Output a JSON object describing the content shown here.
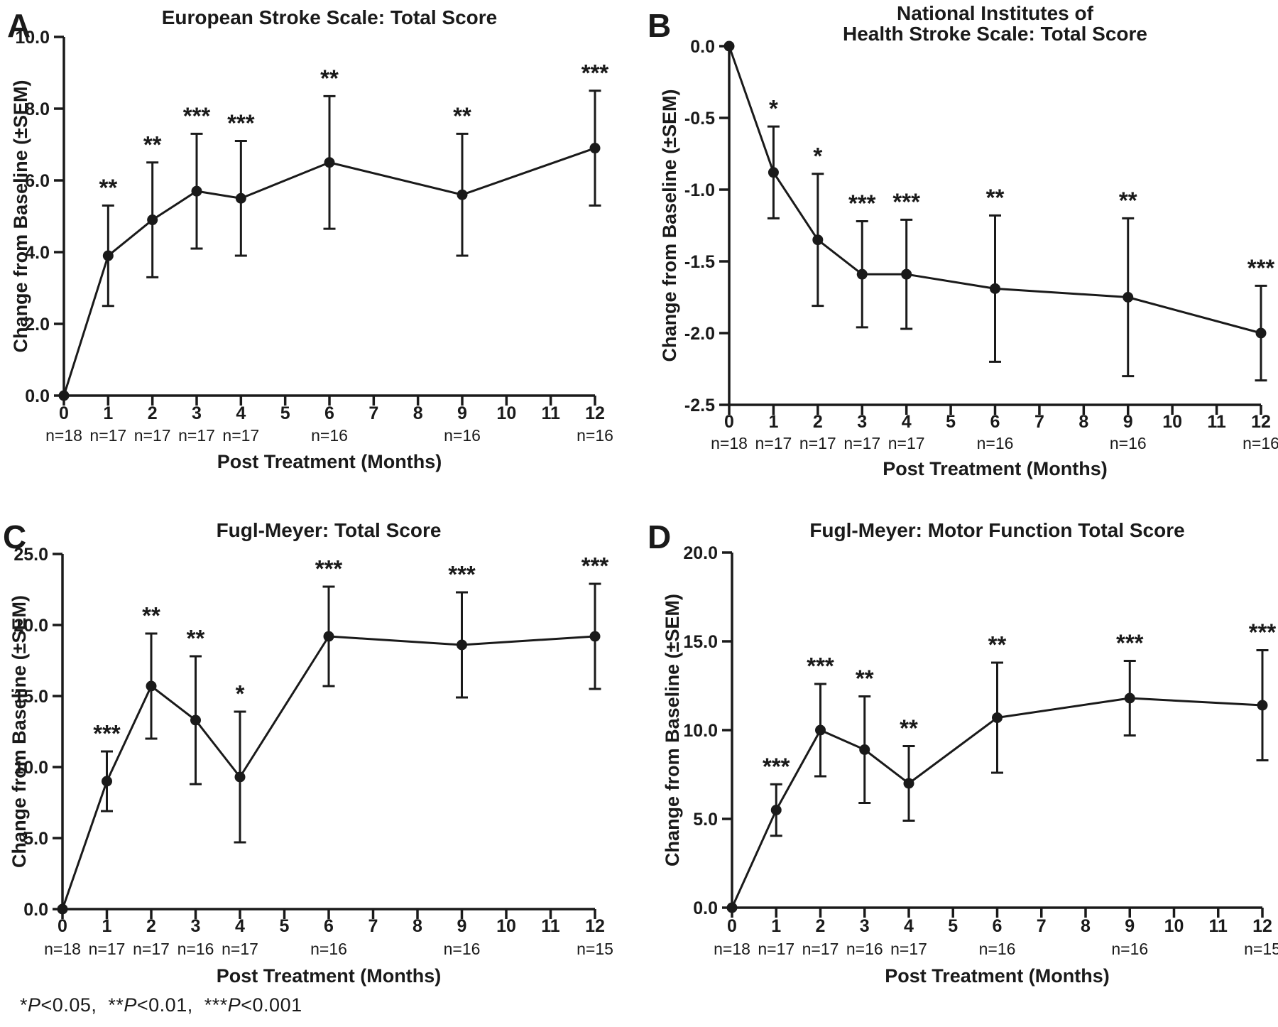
{
  "figure": {
    "background": "#ffffff",
    "ink_color": "#1a1a1a",
    "footnote": {
      "segments": [
        {
          "stars": "*",
          "p": "P",
          "rest": "<0.05,  "
        },
        {
          "stars": "**",
          "p": "P",
          "rest": "<0.01,  "
        },
        {
          "stars": "***",
          "p": "P",
          "rest": "<0.001"
        }
      ]
    }
  },
  "chart_data": [
    {
      "panel_label": "A",
      "type": "line",
      "title_lines": [
        "European Stroke Scale: Total Score"
      ],
      "xlabel": "Post Treatment (Months)",
      "ylabel": "Change from Baseline (±SEM)",
      "xlim": [
        0,
        12
      ],
      "ylim": [
        0,
        10
      ],
      "xticks": [
        0,
        1,
        2,
        3,
        4,
        5,
        6,
        7,
        8,
        9,
        10,
        11,
        12
      ],
      "ytick_values": [
        0,
        2,
        4,
        6,
        8,
        10
      ],
      "ytick_labels": [
        "0.0",
        "2.0",
        "4.0",
        "6.0",
        "8.0",
        "10.0"
      ],
      "series": {
        "name": "Change from baseline",
        "x": [
          0,
          1,
          2,
          3,
          4,
          6,
          9,
          12
        ],
        "y": [
          0.0,
          3.9,
          4.9,
          5.7,
          5.5,
          6.5,
          5.6,
          6.9
        ],
        "sem": [
          0,
          1.4,
          1.6,
          1.6,
          1.6,
          1.85,
          1.7,
          1.6
        ]
      },
      "significance": [
        "",
        "**",
        "**",
        "***",
        "***",
        "**",
        "**",
        "***"
      ],
      "n_labels": [
        {
          "x": 0,
          "label": "n=18"
        },
        {
          "x": 1,
          "label": "n=17"
        },
        {
          "x": 2,
          "label": "n=17"
        },
        {
          "x": 3,
          "label": "n=17"
        },
        {
          "x": 4,
          "label": "n=17"
        },
        {
          "x": 6,
          "label": "n=16"
        },
        {
          "x": 9,
          "label": "n=16"
        },
        {
          "x": 12,
          "label": "n=16"
        }
      ]
    },
    {
      "panel_label": "B",
      "type": "line",
      "title_lines": [
        "National Institutes of",
        "Health Stroke Scale: Total Score"
      ],
      "xlabel": "Post Treatment (Months)",
      "ylabel": "Change from Baseline (±SEM)",
      "xlim": [
        0,
        12
      ],
      "ylim": [
        -2.5,
        0
      ],
      "xticks": [
        0,
        1,
        2,
        3,
        4,
        5,
        6,
        7,
        8,
        9,
        10,
        11,
        12
      ],
      "ytick_values": [
        0,
        -0.5,
        -1.0,
        -1.5,
        -2.0,
        -2.5
      ],
      "ytick_labels": [
        "0.0",
        "-0.5",
        "-1.0",
        "-1.5",
        "-2.0",
        "-2.5"
      ],
      "series": {
        "name": "Change from baseline",
        "x": [
          0,
          1,
          2,
          3,
          4,
          6,
          9,
          12
        ],
        "y": [
          0.0,
          -0.88,
          -1.35,
          -1.59,
          -1.59,
          -1.69,
          -1.75,
          -2.0
        ],
        "sem": [
          0,
          0.32,
          0.46,
          0.37,
          0.38,
          0.51,
          0.55,
          0.33
        ]
      },
      "significance": [
        "",
        "*",
        "*",
        "***",
        "***",
        "**",
        "**",
        "***"
      ],
      "n_labels": [
        {
          "x": 0,
          "label": "n=18"
        },
        {
          "x": 1,
          "label": "n=17"
        },
        {
          "x": 2,
          "label": "n=17"
        },
        {
          "x": 3,
          "label": "n=17"
        },
        {
          "x": 4,
          "label": "n=17"
        },
        {
          "x": 6,
          "label": "n=16"
        },
        {
          "x": 9,
          "label": "n=16"
        },
        {
          "x": 12,
          "label": "n=16"
        }
      ]
    },
    {
      "panel_label": "C",
      "type": "line",
      "title_lines": [
        "Fugl-Meyer: Total Score"
      ],
      "xlabel": "Post Treatment (Months)",
      "ylabel": "Change from Baseline (±SEM)",
      "xlim": [
        0,
        12
      ],
      "ylim": [
        0,
        25
      ],
      "xticks": [
        0,
        1,
        2,
        3,
        4,
        5,
        6,
        7,
        8,
        9,
        10,
        11,
        12
      ],
      "ytick_values": [
        0,
        5,
        10,
        15,
        20,
        25
      ],
      "ytick_labels": [
        "0.0",
        "5.0",
        "10.0",
        "15.0",
        "20.0",
        "25.0"
      ],
      "series": {
        "name": "Change from baseline",
        "x": [
          0,
          1,
          2,
          3,
          4,
          6,
          9,
          12
        ],
        "y": [
          0.0,
          9.0,
          15.7,
          13.3,
          9.3,
          19.2,
          18.6,
          19.2
        ],
        "sem": [
          0,
          2.1,
          3.7,
          4.5,
          4.6,
          3.5,
          3.7,
          3.7
        ]
      },
      "significance": [
        "",
        "***",
        "**",
        "**",
        "*",
        "***",
        "***",
        "***"
      ],
      "n_labels": [
        {
          "x": 0,
          "label": "n=18"
        },
        {
          "x": 1,
          "label": "n=17"
        },
        {
          "x": 2,
          "label": "n=17"
        },
        {
          "x": 3,
          "label": "n=16"
        },
        {
          "x": 4,
          "label": "n=17"
        },
        {
          "x": 6,
          "label": "n=16"
        },
        {
          "x": 9,
          "label": "n=16"
        },
        {
          "x": 12,
          "label": "n=15"
        }
      ]
    },
    {
      "panel_label": "D",
      "type": "line",
      "title_lines": [
        "Fugl-Meyer: Motor Function Total Score"
      ],
      "xlabel": "Post Treatment (Months)",
      "ylabel": "Change from Baseline (±SEM)",
      "xlim": [
        0,
        12
      ],
      "ylim": [
        0,
        20
      ],
      "xticks": [
        0,
        1,
        2,
        3,
        4,
        5,
        6,
        7,
        8,
        9,
        10,
        11,
        12
      ],
      "ytick_values": [
        0,
        5,
        10,
        15,
        20
      ],
      "ytick_labels": [
        "0.0",
        "5.0",
        "10.0",
        "15.0",
        "20.0"
      ],
      "series": {
        "name": "Change from baseline",
        "x": [
          0,
          1,
          2,
          3,
          4,
          6,
          9,
          12
        ],
        "y": [
          0.0,
          5.5,
          10.0,
          8.9,
          7.0,
          10.7,
          11.8,
          11.4
        ],
        "sem": [
          0,
          1.45,
          2.6,
          3.0,
          2.1,
          3.1,
          2.1,
          3.1
        ]
      },
      "significance": [
        "",
        "***",
        "***",
        "**",
        "**",
        "**",
        "***",
        "***"
      ],
      "n_labels": [
        {
          "x": 0,
          "label": "n=18"
        },
        {
          "x": 1,
          "label": "n=17"
        },
        {
          "x": 2,
          "label": "n=17"
        },
        {
          "x": 3,
          "label": "n=16"
        },
        {
          "x": 4,
          "label": "n=17"
        },
        {
          "x": 6,
          "label": "n=16"
        },
        {
          "x": 9,
          "label": "n=16"
        },
        {
          "x": 12,
          "label": "n=15"
        }
      ]
    }
  ]
}
